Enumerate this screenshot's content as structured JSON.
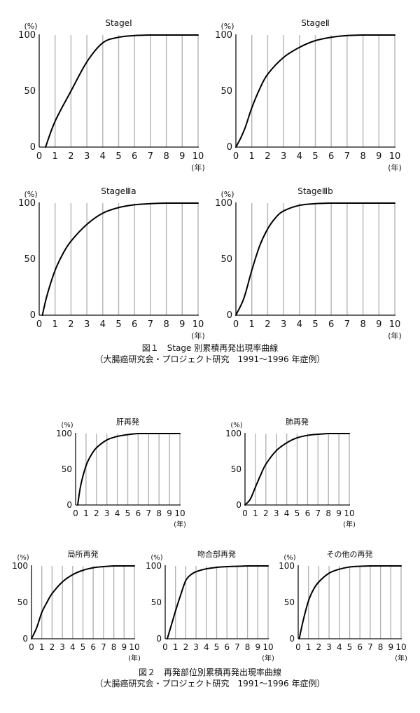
{
  "figure1": {
    "caption_title": "図１　Stage 別累積再発出現率曲線",
    "caption_note": "（大腸癌研究会・プロジェクト研究　1991～1996 年症例）"
  },
  "figure2": {
    "caption_title": "図２　再発部位別累積再発出現率曲線",
    "caption_note": "（大腸癌研究会・プロジェクト研究　1991～1996 年症例）"
  },
  "axis_common": {
    "y_unit": "(%)",
    "x_unit": "(年)",
    "y_ticks": [
      0,
      50,
      100
    ],
    "x_ticks": [
      0,
      1,
      2,
      3,
      4,
      5,
      6,
      7,
      8,
      9,
      10
    ]
  },
  "chart_data": [
    {
      "type": "line",
      "title": "StageⅠ",
      "xlim": [
        0,
        10
      ],
      "ylim": [
        0,
        100
      ],
      "grid": true,
      "x": [
        0.4,
        1,
        2,
        3,
        4,
        5,
        6,
        7,
        8,
        9,
        10
      ],
      "y": [
        0,
        23,
        50,
        76,
        93,
        98,
        99.5,
        100,
        100,
        100,
        100
      ]
    },
    {
      "type": "line",
      "title": "StageⅡ",
      "xlim": [
        0,
        10
      ],
      "ylim": [
        0,
        100
      ],
      "grid": true,
      "x": [
        0,
        0.3,
        0.6,
        1,
        1.5,
        2,
        3,
        4,
        5,
        6,
        7,
        8,
        9,
        10
      ],
      "y": [
        0,
        8,
        18,
        35,
        52,
        65,
        80,
        89,
        95,
        98,
        99.5,
        100,
        100,
        100
      ]
    },
    {
      "type": "line",
      "title": "StageⅢa",
      "xlim": [
        0,
        10
      ],
      "ylim": [
        0,
        100
      ],
      "grid": true,
      "x": [
        0.2,
        0.5,
        1,
        1.5,
        2,
        3,
        4,
        5,
        6,
        7,
        8,
        9,
        10
      ],
      "y": [
        0,
        18,
        40,
        55,
        66,
        81,
        91,
        96,
        98.5,
        99.5,
        100,
        100,
        100
      ]
    },
    {
      "type": "line",
      "title": "StageⅢb",
      "xlim": [
        0,
        10
      ],
      "ylim": [
        0,
        100
      ],
      "grid": true,
      "x": [
        0,
        0.5,
        1,
        1.5,
        2,
        2.5,
        3,
        4,
        5,
        6,
        7,
        8,
        9,
        10
      ],
      "y": [
        0,
        15,
        40,
        62,
        77,
        87,
        93,
        98,
        99.5,
        100,
        100,
        100,
        100,
        100
      ]
    },
    {
      "type": "line",
      "title": "肝再発",
      "xlim": [
        0,
        10
      ],
      "ylim": [
        0,
        100
      ],
      "grid": true,
      "x": [
        0.2,
        0.5,
        1,
        1.5,
        2,
        3,
        4,
        5,
        6,
        7,
        8,
        9,
        10
      ],
      "y": [
        0,
        28,
        55,
        70,
        80,
        91,
        96,
        98.5,
        100,
        100,
        100,
        100,
        100
      ]
    },
    {
      "type": "line",
      "title": "肺再発",
      "xlim": [
        0,
        10
      ],
      "ylim": [
        0,
        100
      ],
      "grid": true,
      "x": [
        0,
        0.5,
        1,
        1.5,
        2,
        3,
        4,
        5,
        6,
        7,
        8,
        9,
        10
      ],
      "y": [
        0,
        8,
        25,
        42,
        57,
        76,
        87,
        94,
        97.5,
        99,
        100,
        100,
        100
      ]
    },
    {
      "type": "line",
      "title": "局所再発",
      "xlim": [
        0,
        10
      ],
      "ylim": [
        0,
        100
      ],
      "grid": true,
      "x": [
        0,
        0.5,
        1,
        1.5,
        2,
        3,
        4,
        5,
        6,
        7,
        8,
        9,
        10
      ],
      "y": [
        0,
        15,
        36,
        50,
        62,
        78,
        88,
        94,
        97.5,
        99,
        100,
        100,
        100
      ]
    },
    {
      "type": "line",
      "title": "吻合部再発",
      "xlim": [
        0,
        10
      ],
      "ylim": [
        0,
        100
      ],
      "grid": true,
      "x": [
        0.2,
        0.5,
        1,
        1.5,
        2,
        2.5,
        3,
        4,
        5,
        6,
        7,
        8,
        9,
        10
      ],
      "y": [
        0,
        14,
        38,
        60,
        80,
        88,
        92,
        96,
        98,
        99,
        99.5,
        100,
        100,
        100
      ]
    },
    {
      "type": "line",
      "title": "その他の再発",
      "xlim": [
        0,
        10
      ],
      "ylim": [
        0,
        100
      ],
      "grid": true,
      "x": [
        0.1,
        0.5,
        1,
        1.5,
        2,
        3,
        4,
        5,
        6,
        7,
        8,
        9,
        10
      ],
      "y": [
        0,
        26,
        52,
        68,
        78,
        90,
        95.5,
        98.5,
        99.5,
        100,
        100,
        100,
        100
      ]
    }
  ]
}
